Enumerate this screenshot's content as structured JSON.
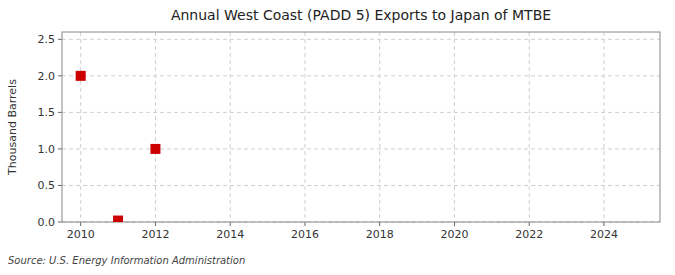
{
  "chart_data": {
    "type": "scatter",
    "title": "Annual West Coast (PADD 5) Exports to Japan of MTBE",
    "ylabel": "Thousand Barrels",
    "source": "Source: U.S. Energy Information Administration",
    "x": [
      2010,
      2011,
      2012
    ],
    "values": [
      2.0,
      0.02,
      1.0
    ],
    "color": "#cc0000",
    "marker": "square",
    "xlim": [
      2009.5,
      2025.5
    ],
    "ylim": [
      0.0,
      2.6
    ],
    "xticks": [
      2010,
      2012,
      2014,
      2016,
      2018,
      2020,
      2022,
      2024
    ],
    "yticks": [
      {
        "value": 0.0,
        "label": "0.0"
      },
      0.5,
      {
        "value": 1.0,
        "label": "1.0"
      },
      1.5,
      {
        "value": 2.0,
        "label": "2.0"
      },
      2.5
    ],
    "grid": true
  }
}
